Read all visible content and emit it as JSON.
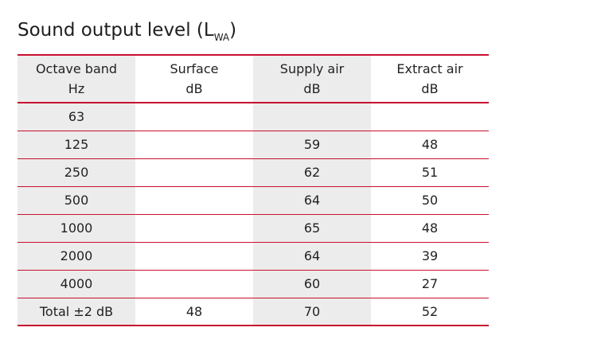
{
  "title": {
    "main": "Sound output level (L",
    "subscript": "WA",
    "close": ")"
  },
  "table": {
    "headers": [
      {
        "line1": "Octave band",
        "line2": "Hz"
      },
      {
        "line1": "Surface",
        "line2": "dB"
      },
      {
        "line1": "Supply air",
        "line2": "dB"
      },
      {
        "line1": "Extract air",
        "line2": "dB"
      }
    ],
    "rows": [
      {
        "band": "63",
        "surface": "",
        "supply": "",
        "extract": ""
      },
      {
        "band": "125",
        "surface": "",
        "supply": "59",
        "extract": "48"
      },
      {
        "band": "250",
        "surface": "",
        "supply": "62",
        "extract": "51"
      },
      {
        "band": "500",
        "surface": "",
        "supply": "64",
        "extract": "50"
      },
      {
        "band": "1000",
        "surface": "",
        "supply": "65",
        "extract": "48"
      },
      {
        "band": "2000",
        "surface": "",
        "supply": "64",
        "extract": "39"
      },
      {
        "band": "4000",
        "surface": "",
        "supply": "60",
        "extract": "27"
      },
      {
        "band": "Total ±2 dB",
        "surface": "48",
        "supply": "70",
        "extract": "52"
      }
    ]
  },
  "colors": {
    "rule": "#c8102e",
    "shade": "#ececec"
  }
}
